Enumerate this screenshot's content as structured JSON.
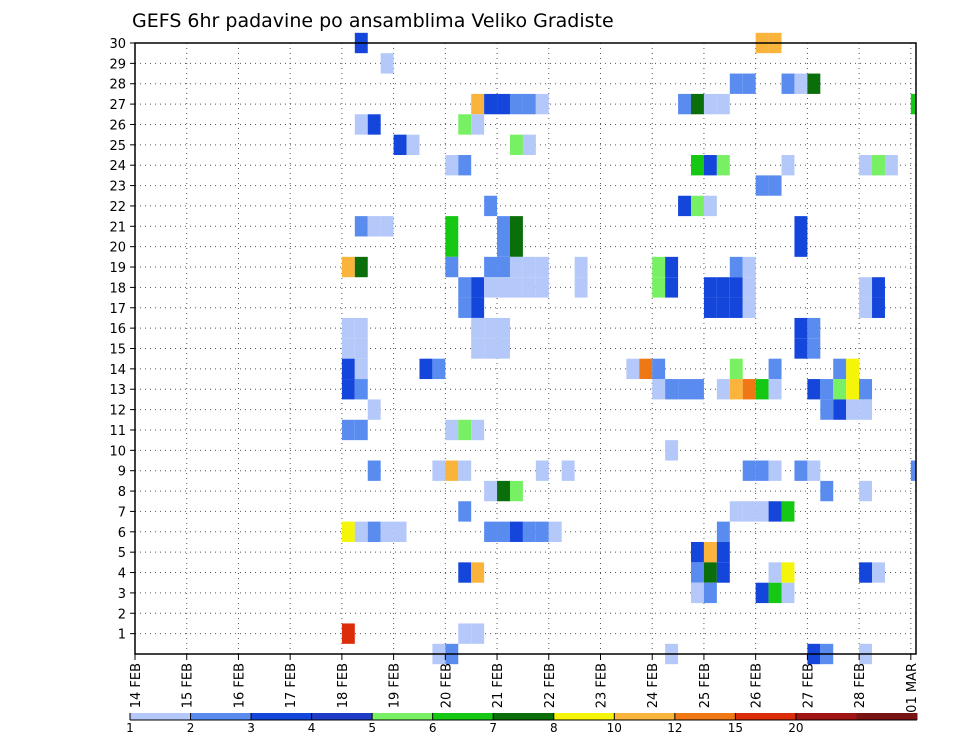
{
  "chart_data": {
    "type": "heatmap",
    "title": "GEFS 6hr padavine po ansamblima Veliko Gradiste",
    "x_ticks": [
      "14 FEB",
      "15 FEB",
      "16 FEB",
      "17 FEB",
      "18 FEB",
      "19 FEB",
      "20 FEB",
      "21 FEB",
      "22 FEB",
      "23 FEB",
      "24 FEB",
      "25 FEB",
      "26 FEB",
      "27 FEB",
      "28 FEB",
      "01 MAR"
    ],
    "x_range_days": [
      0,
      15.1
    ],
    "y_ticks": [
      1,
      2,
      3,
      4,
      5,
      6,
      7,
      8,
      9,
      10,
      11,
      12,
      13,
      14,
      15,
      16,
      17,
      18,
      19,
      20,
      21,
      22,
      23,
      24,
      25,
      26,
      27,
      28,
      29,
      30
    ],
    "ylim": [
      0,
      30
    ],
    "grid": true,
    "legend": {
      "placement": "bottom",
      "labels": [
        "1",
        "2",
        "3",
        "4",
        "5",
        "6",
        "7",
        "8",
        "10",
        "12",
        "15",
        "20"
      ],
      "colors": [
        "#b4c8fa",
        "#5a8cf0",
        "#1446dc",
        "#1e3cc8",
        "#78f064",
        "#14c814",
        "#0a6e0a",
        "#f5f50a",
        "#fab43c",
        "#f07814",
        "#dc2d0a",
        "#a01414",
        "#781414"
      ]
    },
    "cells": [
      [
        30,
        4.25,
        3
      ],
      [
        30,
        12.0,
        9
      ],
      [
        30,
        12.25,
        9
      ],
      [
        29,
        4.75,
        1
      ],
      [
        28,
        11.5,
        2
      ],
      [
        28,
        11.75,
        2
      ],
      [
        28,
        12.5,
        2
      ],
      [
        28,
        12.75,
        1
      ],
      [
        28,
        13.0,
        7
      ],
      [
        27,
        6.5,
        9
      ],
      [
        27,
        6.75,
        3
      ],
      [
        27,
        7.0,
        3
      ],
      [
        27,
        7.25,
        2
      ],
      [
        27,
        7.5,
        2
      ],
      [
        27,
        7.75,
        1
      ],
      [
        27,
        10.5,
        2
      ],
      [
        27,
        10.75,
        7
      ],
      [
        27,
        11.0,
        1
      ],
      [
        27,
        11.25,
        1
      ],
      [
        27,
        15.0,
        6
      ],
      [
        26,
        4.25,
        1
      ],
      [
        26,
        4.5,
        3
      ],
      [
        26,
        6.25,
        5
      ],
      [
        26,
        6.5,
        1
      ],
      [
        25,
        5.0,
        3
      ],
      [
        25,
        5.25,
        1
      ],
      [
        25,
        7.25,
        5
      ],
      [
        25,
        7.5,
        1
      ],
      [
        24,
        6.0,
        1
      ],
      [
        24,
        6.25,
        2
      ],
      [
        24,
        10.75,
        6
      ],
      [
        24,
        11.0,
        3
      ],
      [
        24,
        11.25,
        5
      ],
      [
        24,
        12.5,
        1
      ],
      [
        24,
        14.0,
        1
      ],
      [
        24,
        14.25,
        5
      ],
      [
        24,
        14.5,
        1
      ],
      [
        23,
        12.0,
        2
      ],
      [
        23,
        12.25,
        2
      ],
      [
        22,
        6.75,
        2
      ],
      [
        22,
        10.5,
        3
      ],
      [
        22,
        10.75,
        5
      ],
      [
        22,
        11.0,
        1
      ],
      [
        21,
        4.25,
        2
      ],
      [
        21,
        4.5,
        1
      ],
      [
        21,
        4.75,
        1
      ],
      [
        21,
        6.0,
        6
      ],
      [
        21,
        7.0,
        2
      ],
      [
        21,
        7.25,
        7
      ],
      [
        21,
        12.75,
        3
      ],
      [
        20,
        6.0,
        6
      ],
      [
        20,
        7.0,
        2
      ],
      [
        20,
        7.25,
        7
      ],
      [
        20,
        12.75,
        3
      ],
      [
        19,
        4.0,
        9
      ],
      [
        19,
        4.25,
        7
      ],
      [
        19,
        6.0,
        2
      ],
      [
        19,
        6.75,
        2
      ],
      [
        19,
        7.0,
        2
      ],
      [
        19,
        7.25,
        1
      ],
      [
        19,
        7.5,
        1
      ],
      [
        19,
        7.75,
        1
      ],
      [
        19,
        8.5,
        1
      ],
      [
        19,
        10.0,
        5
      ],
      [
        19,
        10.25,
        3
      ],
      [
        19,
        11.5,
        2
      ],
      [
        19,
        11.75,
        1
      ],
      [
        18,
        6.25,
        2
      ],
      [
        18,
        6.5,
        3
      ],
      [
        18,
        6.75,
        1
      ],
      [
        18,
        7.0,
        1
      ],
      [
        18,
        7.25,
        1
      ],
      [
        18,
        7.5,
        1
      ],
      [
        18,
        7.75,
        1
      ],
      [
        18,
        8.5,
        1
      ],
      [
        18,
        10.0,
        5
      ],
      [
        18,
        10.25,
        3
      ],
      [
        18,
        11.0,
        3
      ],
      [
        18,
        11.25,
        3
      ],
      [
        18,
        11.5,
        3
      ],
      [
        18,
        11.75,
        1
      ],
      [
        18,
        14.0,
        1
      ],
      [
        18,
        14.25,
        3
      ],
      [
        17,
        6.25,
        2
      ],
      [
        17,
        6.5,
        3
      ],
      [
        17,
        11.0,
        3
      ],
      [
        17,
        11.25,
        3
      ],
      [
        17,
        11.5,
        3
      ],
      [
        17,
        11.75,
        1
      ],
      [
        17,
        14.0,
        1
      ],
      [
        17,
        14.25,
        3
      ],
      [
        16,
        4.0,
        1
      ],
      [
        16,
        4.25,
        1
      ],
      [
        16,
        6.5,
        1
      ],
      [
        16,
        6.75,
        1
      ],
      [
        16,
        7.0,
        1
      ],
      [
        16,
        12.75,
        3
      ],
      [
        16,
        13.0,
        2
      ],
      [
        15,
        4.0,
        1
      ],
      [
        15,
        4.25,
        1
      ],
      [
        15,
        6.5,
        1
      ],
      [
        15,
        6.75,
        1
      ],
      [
        15,
        7.0,
        1
      ],
      [
        15,
        12.75,
        3
      ],
      [
        15,
        13.0,
        2
      ],
      [
        14,
        4.0,
        3
      ],
      [
        14,
        4.25,
        1
      ],
      [
        14,
        5.5,
        3
      ],
      [
        14,
        5.75,
        2
      ],
      [
        14,
        9.5,
        1
      ],
      [
        14,
        9.75,
        10
      ],
      [
        14,
        10.0,
        2
      ],
      [
        14,
        11.5,
        5
      ],
      [
        14,
        12.25,
        2
      ],
      [
        14,
        13.5,
        2
      ],
      [
        14,
        13.75,
        8
      ],
      [
        13,
        4.0,
        3
      ],
      [
        13,
        4.25,
        2
      ],
      [
        13,
        10.0,
        1
      ],
      [
        13,
        10.25,
        2
      ],
      [
        13,
        10.5,
        2
      ],
      [
        13,
        10.75,
        2
      ],
      [
        13,
        11.25,
        1
      ],
      [
        13,
        11.5,
        9
      ],
      [
        13,
        11.75,
        10
      ],
      [
        13,
        12.0,
        6
      ],
      [
        13,
        12.25,
        1
      ],
      [
        13,
        13.0,
        3
      ],
      [
        13,
        13.25,
        2
      ],
      [
        13,
        13.5,
        5
      ],
      [
        13,
        13.75,
        8
      ],
      [
        13,
        14.0,
        2
      ],
      [
        12,
        4.5,
        1
      ],
      [
        12,
        13.25,
        2
      ],
      [
        12,
        13.5,
        3
      ],
      [
        12,
        13.75,
        1
      ],
      [
        12,
        14.0,
        1
      ],
      [
        11,
        4.0,
        2
      ],
      [
        11,
        4.25,
        2
      ],
      [
        11,
        6.0,
        1
      ],
      [
        11,
        6.25,
        5
      ],
      [
        11,
        6.5,
        1
      ],
      [
        10,
        10.25,
        1
      ],
      [
        9,
        4.5,
        2
      ],
      [
        9,
        5.75,
        1
      ],
      [
        9,
        6.0,
        9
      ],
      [
        9,
        6.25,
        1
      ],
      [
        9,
        7.75,
        1
      ],
      [
        9,
        8.25,
        1
      ],
      [
        9,
        11.75,
        2
      ],
      [
        9,
        12.0,
        2
      ],
      [
        9,
        12.25,
        1
      ],
      [
        9,
        12.75,
        2
      ],
      [
        9,
        13.0,
        1
      ],
      [
        9,
        15.0,
        2
      ],
      [
        8,
        6.75,
        1
      ],
      [
        8,
        7.0,
        7
      ],
      [
        8,
        7.25,
        5
      ],
      [
        8,
        13.25,
        2
      ],
      [
        8,
        14.0,
        1
      ],
      [
        7,
        6.25,
        2
      ],
      [
        7,
        11.5,
        1
      ],
      [
        7,
        11.75,
        1
      ],
      [
        7,
        12.0,
        1
      ],
      [
        7,
        12.25,
        3
      ],
      [
        7,
        12.5,
        6
      ],
      [
        6,
        4.0,
        8
      ],
      [
        6,
        4.25,
        1
      ],
      [
        6,
        4.5,
        2
      ],
      [
        6,
        4.75,
        1
      ],
      [
        6,
        5.0,
        1
      ],
      [
        6,
        6.75,
        2
      ],
      [
        6,
        7.0,
        2
      ],
      [
        6,
        7.25,
        3
      ],
      [
        6,
        7.5,
        2
      ],
      [
        6,
        7.75,
        2
      ],
      [
        6,
        8.0,
        1
      ],
      [
        6,
        11.25,
        2
      ],
      [
        5,
        10.75,
        3
      ],
      [
        5,
        11.0,
        9
      ],
      [
        5,
        11.25,
        3
      ],
      [
        4,
        6.25,
        3
      ],
      [
        4,
        6.5,
        9
      ],
      [
        4,
        10.75,
        2
      ],
      [
        4,
        11.0,
        7
      ],
      [
        4,
        11.25,
        3
      ],
      [
        4,
        12.25,
        1
      ],
      [
        4,
        12.5,
        8
      ],
      [
        4,
        14.0,
        3
      ],
      [
        4,
        14.25,
        1
      ],
      [
        3,
        10.75,
        1
      ],
      [
        3,
        11.0,
        2
      ],
      [
        3,
        12.0,
        3
      ],
      [
        3,
        12.25,
        6
      ],
      [
        3,
        12.5,
        1
      ],
      [
        1,
        4.0,
        11
      ],
      [
        1,
        6.25,
        1
      ],
      [
        1,
        6.5,
        1
      ],
      [
        0,
        5.75,
        1
      ],
      [
        0,
        6.0,
        2
      ],
      [
        0,
        10.25,
        1
      ],
      [
        0,
        13.0,
        3
      ],
      [
        0,
        13.25,
        2
      ],
      [
        0,
        14.0,
        1
      ]
    ]
  }
}
